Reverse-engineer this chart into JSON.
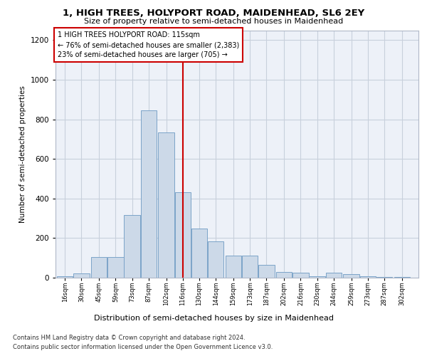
{
  "title1": "1, HIGH TREES, HOLYPORT ROAD, MAIDENHEAD, SL6 2EY",
  "title2": "Size of property relative to semi-detached houses in Maidenhead",
  "xlabel": "Distribution of semi-detached houses by size in Maidenhead",
  "ylabel": "Number of semi-detached properties",
  "footer1": "Contains HM Land Registry data © Crown copyright and database right 2024.",
  "footer2": "Contains public sector information licensed under the Open Government Licence v3.0.",
  "annotation_line1": "1 HIGH TREES HOLYPORT ROAD: 115sqm",
  "annotation_line2": "← 76% of semi-detached houses are smaller (2,383)",
  "annotation_line3": "23% of semi-detached houses are larger (705) →",
  "bar_color": "#ccd9e8",
  "bar_edge_color": "#7ba3c8",
  "bar_centers": [
    16,
    30,
    45,
    59,
    73,
    87,
    102,
    116,
    130,
    144,
    159,
    173,
    187,
    202,
    216,
    230,
    244,
    259,
    273,
    287,
    302
  ],
  "bar_width": 13.5,
  "bar_heights": [
    8,
    20,
    105,
    105,
    315,
    845,
    735,
    430,
    250,
    185,
    110,
    110,
    65,
    30,
    25,
    8,
    25,
    18,
    8,
    5,
    5
  ],
  "tick_labels": [
    "16sqm",
    "30sqm",
    "45sqm",
    "59sqm",
    "73sqm",
    "87sqm",
    "102sqm",
    "116sqm",
    "130sqm",
    "144sqm",
    "159sqm",
    "173sqm",
    "187sqm",
    "202sqm",
    "216sqm",
    "230sqm",
    "244sqm",
    "259sqm",
    "273sqm",
    "287sqm",
    "302sqm"
  ],
  "ylim": [
    0,
    1250
  ],
  "yticks": [
    0,
    200,
    400,
    600,
    800,
    1000,
    1200
  ],
  "vline_x": 116,
  "vline_color": "#cc0000",
  "annotation_box_facecolor": "#ffffff",
  "annotation_box_edgecolor": "#cc0000",
  "grid_color": "#c8d0dc",
  "bg_color": "#edf1f8",
  "xlim_left": 8,
  "xlim_right": 316
}
